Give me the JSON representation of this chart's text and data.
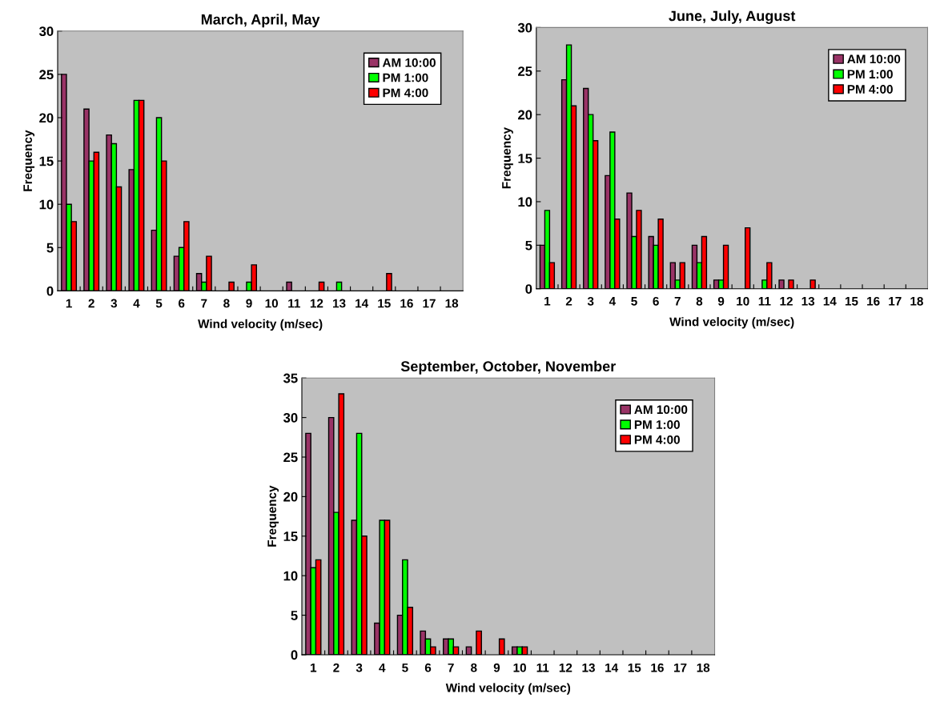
{
  "chart_data": [
    {
      "type": "bar",
      "title": "March, April, May",
      "xlabel": "Wind velocity (m/sec)",
      "ylabel": "Frequency",
      "categories": [
        "1",
        "2",
        "3",
        "4",
        "5",
        "6",
        "7",
        "8",
        "9",
        "10",
        "11",
        "12",
        "13",
        "14",
        "15",
        "16",
        "17",
        "18"
      ],
      "ylim": [
        0,
        30
      ],
      "yticks": [
        0,
        5,
        10,
        15,
        20,
        25,
        30
      ],
      "legend": "top right",
      "grid": false,
      "series": [
        {
          "name": "AM 10:00",
          "color": "#993366",
          "values": [
            25,
            21,
            18,
            14,
            7,
            4,
            2,
            0,
            0,
            0,
            1,
            0,
            0,
            0,
            0,
            0,
            0,
            0
          ]
        },
        {
          "name": "PM 1:00",
          "color": "#00ff00",
          "values": [
            10,
            15,
            17,
            22,
            20,
            5,
            1,
            0,
            1,
            0,
            0,
            0,
            1,
            0,
            0,
            0,
            0,
            0
          ]
        },
        {
          "name": "PM 4:00",
          "color": "#ff0000",
          "values": [
            8,
            16,
            12,
            22,
            15,
            8,
            4,
            1,
            3,
            0,
            0,
            1,
            0,
            0,
            2,
            0,
            0,
            0
          ]
        }
      ]
    },
    {
      "type": "bar",
      "title": "June, July, August",
      "xlabel": "Wind velocity (m/sec)",
      "ylabel": "Frequency",
      "categories": [
        "1",
        "2",
        "3",
        "4",
        "5",
        "6",
        "7",
        "8",
        "9",
        "10",
        "11",
        "12",
        "13",
        "14",
        "15",
        "16",
        "17",
        "18"
      ],
      "ylim": [
        0,
        30
      ],
      "yticks": [
        0,
        5,
        10,
        15,
        20,
        25,
        30
      ],
      "legend": "top right",
      "grid": false,
      "series": [
        {
          "name": "AM 10:00",
          "color": "#993366",
          "values": [
            5,
            24,
            23,
            13,
            11,
            6,
            3,
            5,
            1,
            0,
            0,
            1,
            0,
            0,
            0,
            0,
            0,
            0
          ]
        },
        {
          "name": "PM 1:00",
          "color": "#00ff00",
          "values": [
            9,
            28,
            20,
            18,
            6,
            5,
            1,
            3,
            1,
            0,
            1,
            0,
            0,
            0,
            0,
            0,
            0,
            0
          ]
        },
        {
          "name": "PM 4:00",
          "color": "#ff0000",
          "values": [
            3,
            21,
            17,
            8,
            9,
            8,
            3,
            6,
            5,
            7,
            3,
            1,
            1,
            0,
            0,
            0,
            0,
            0
          ]
        }
      ]
    },
    {
      "type": "bar",
      "title": "September, October, November",
      "xlabel": "Wind velocity (m/sec)",
      "ylabel": "Frequency",
      "categories": [
        "1",
        "2",
        "3",
        "4",
        "5",
        "6",
        "7",
        "8",
        "9",
        "10",
        "11",
        "12",
        "13",
        "14",
        "15",
        "16",
        "17",
        "18"
      ],
      "ylim": [
        0,
        35
      ],
      "yticks": [
        0,
        5,
        10,
        15,
        20,
        25,
        30,
        35
      ],
      "legend": "top right",
      "grid": false,
      "series": [
        {
          "name": "AM 10:00",
          "color": "#993366",
          "values": [
            28,
            30,
            17,
            4,
            5,
            3,
            2,
            1,
            0,
            1,
            0,
            0,
            0,
            0,
            0,
            0,
            0,
            0
          ]
        },
        {
          "name": "PM 1:00",
          "color": "#00ff00",
          "values": [
            11,
            18,
            28,
            17,
            12,
            2,
            2,
            0,
            0,
            1,
            0,
            0,
            0,
            0,
            0,
            0,
            0,
            0
          ]
        },
        {
          "name": "PM 4:00",
          "color": "#ff0000",
          "values": [
            12,
            33,
            15,
            17,
            6,
            1,
            1,
            3,
            2,
            1,
            0,
            0,
            0,
            0,
            0,
            0,
            0,
            0
          ]
        }
      ]
    }
  ]
}
